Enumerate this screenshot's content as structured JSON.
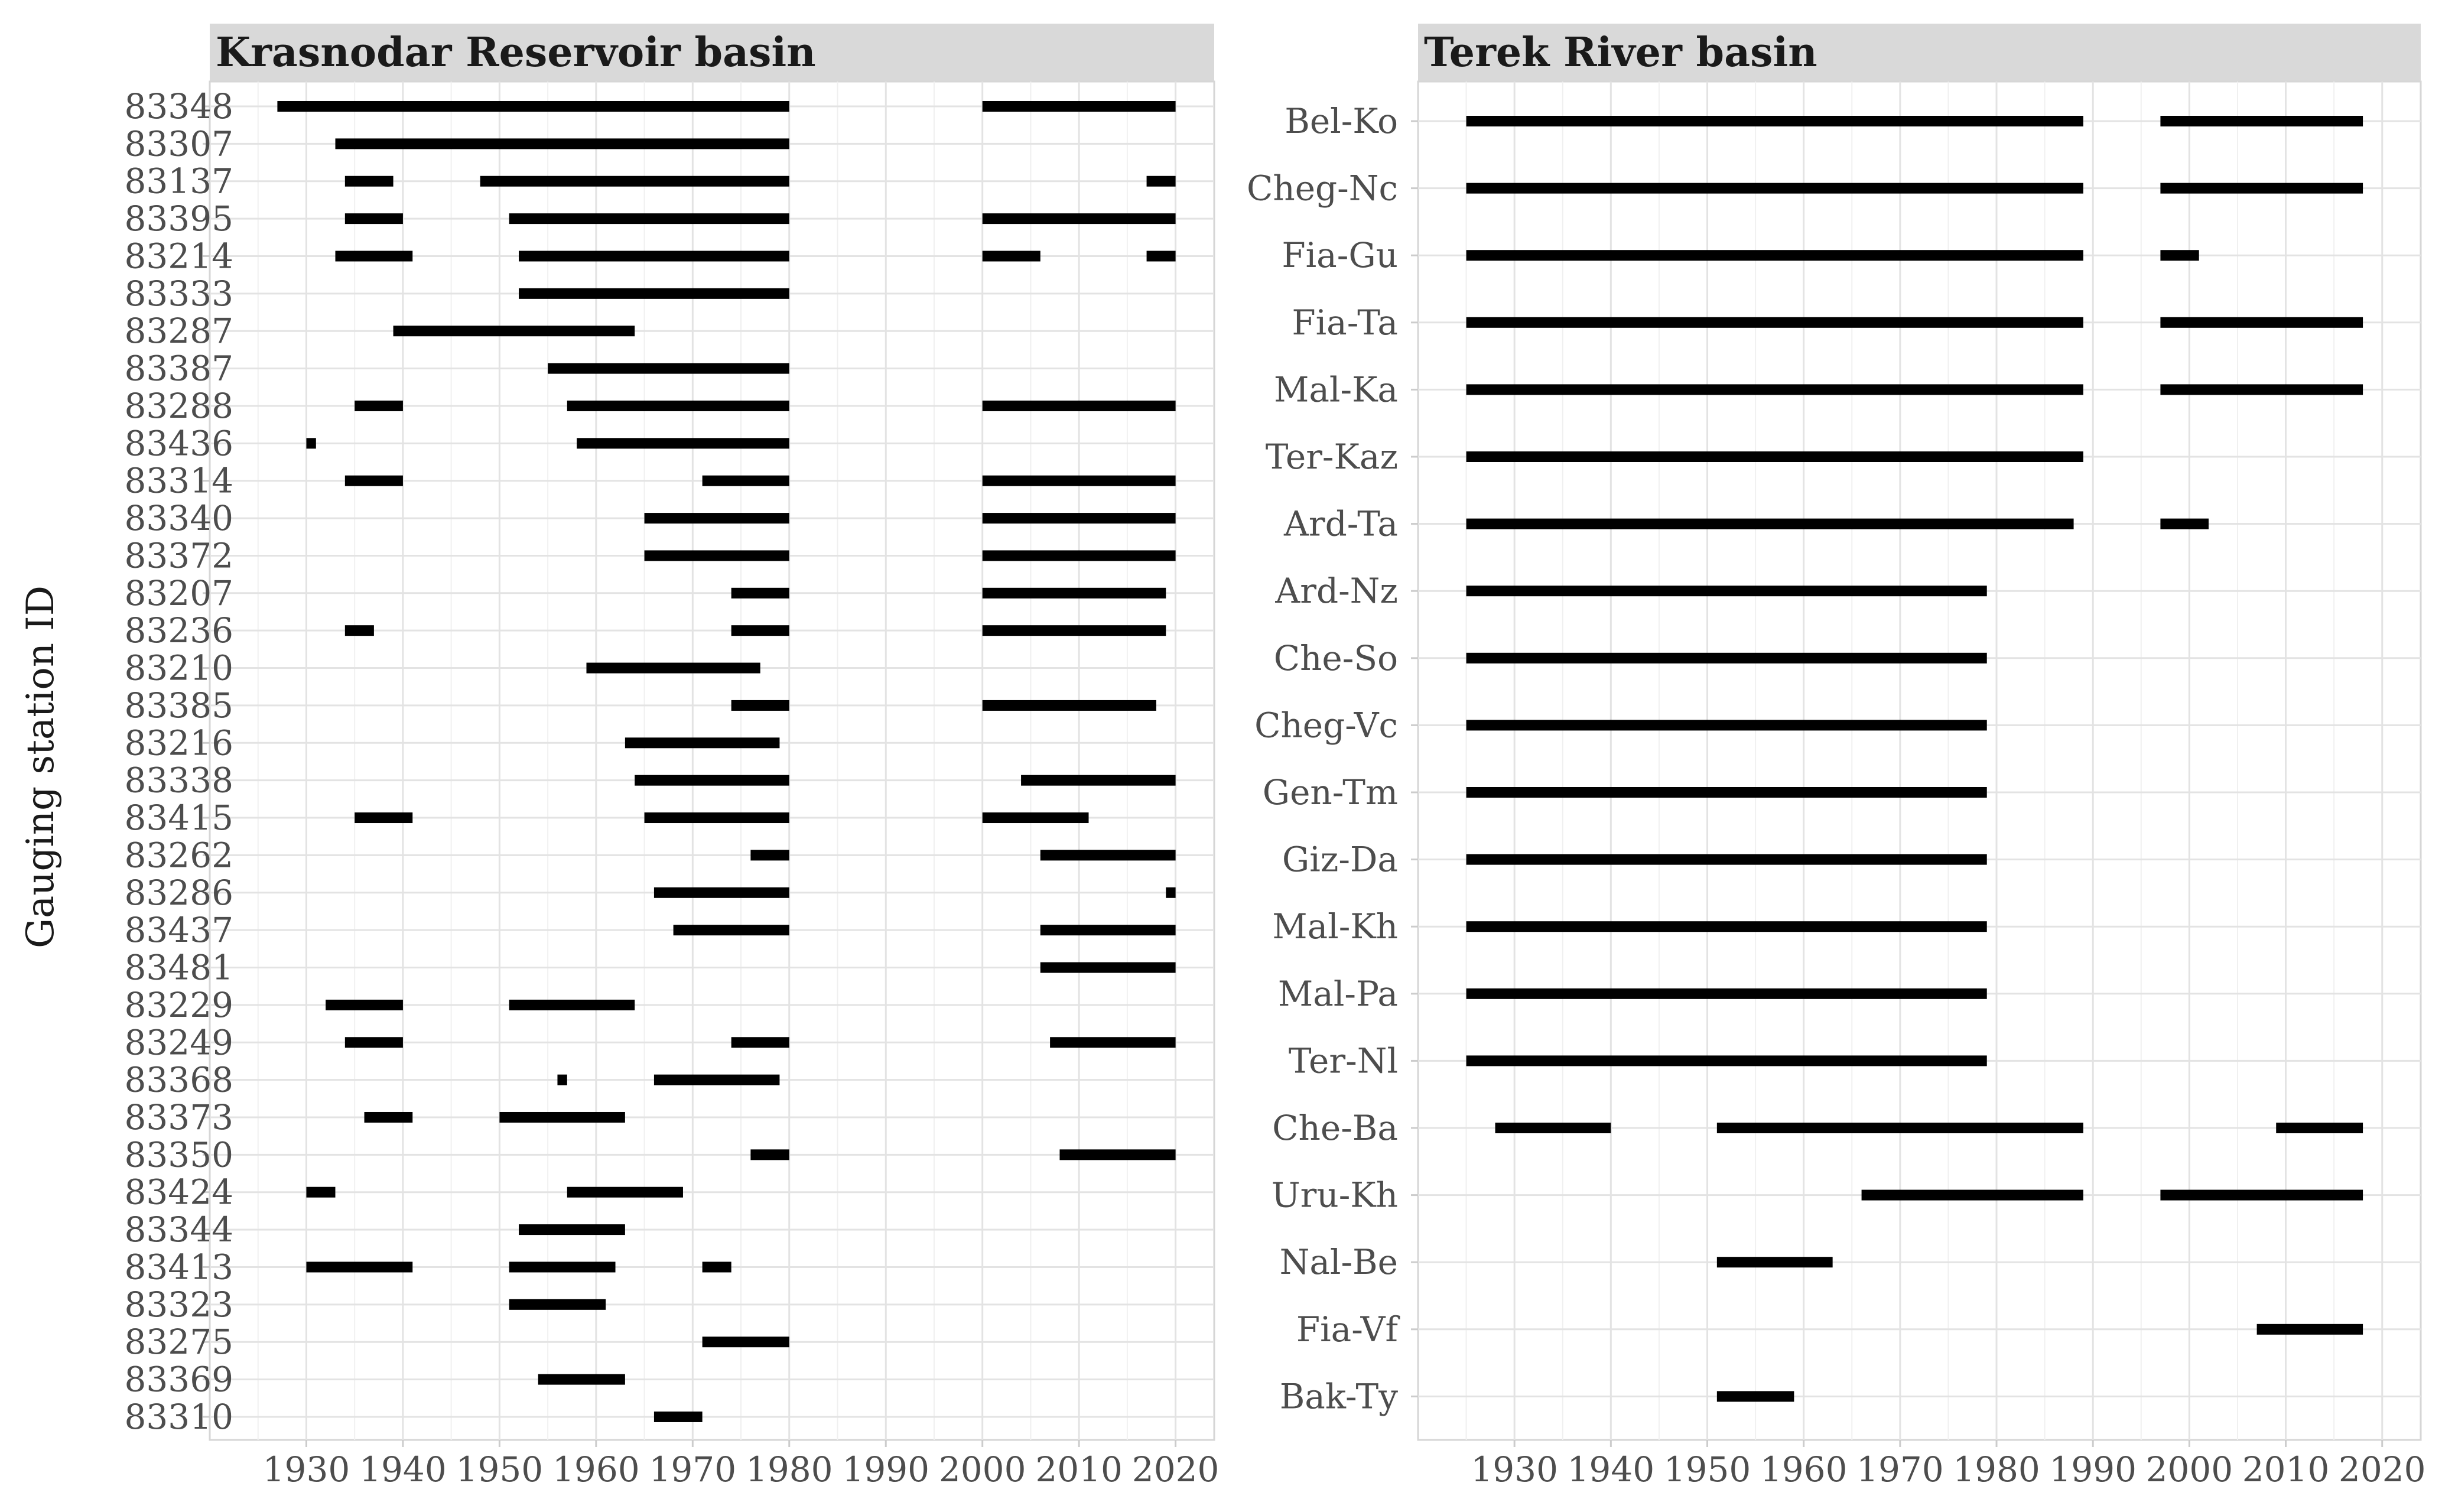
{
  "ylabel": "Gauging station ID",
  "chart_data": [
    {
      "type": "timeline",
      "title": "Krasnodar Reservoir basin",
      "ylabel": "Gauging station ID",
      "xlim": [
        1920,
        2024
      ],
      "xticks": [
        1930,
        1940,
        1950,
        1960,
        1970,
        1980,
        1990,
        2000,
        2010,
        2020
      ],
      "grid": true,
      "stations": [
        {
          "id": "83348",
          "periods": [
            [
              1927,
              1980
            ],
            [
              2000,
              2020
            ]
          ]
        },
        {
          "id": "83307",
          "periods": [
            [
              1933,
              1980
            ]
          ]
        },
        {
          "id": "83137",
          "periods": [
            [
              1934,
              1939
            ],
            [
              1948,
              1980
            ],
            [
              2017,
              2020
            ]
          ]
        },
        {
          "id": "83395",
          "periods": [
            [
              1934,
              1940
            ],
            [
              1951,
              1980
            ],
            [
              2000,
              2020
            ]
          ]
        },
        {
          "id": "83214",
          "periods": [
            [
              1933,
              1941
            ],
            [
              1952,
              1980
            ],
            [
              2000,
              2006
            ],
            [
              2017,
              2020
            ]
          ]
        },
        {
          "id": "83333",
          "periods": [
            [
              1952,
              1980
            ]
          ]
        },
        {
          "id": "83287",
          "periods": [
            [
              1939,
              1964
            ]
          ]
        },
        {
          "id": "83387",
          "periods": [
            [
              1955,
              1980
            ]
          ]
        },
        {
          "id": "83288",
          "periods": [
            [
              1935,
              1940
            ],
            [
              1957,
              1980
            ],
            [
              2000,
              2020
            ]
          ]
        },
        {
          "id": "83436",
          "periods": [
            [
              1930,
              1931
            ],
            [
              1958,
              1980
            ]
          ]
        },
        {
          "id": "83314",
          "periods": [
            [
              1934,
              1940
            ],
            [
              1971,
              1980
            ],
            [
              2000,
              2020
            ]
          ]
        },
        {
          "id": "83340",
          "periods": [
            [
              1965,
              1980
            ],
            [
              2000,
              2020
            ]
          ]
        },
        {
          "id": "83372",
          "periods": [
            [
              1965,
              1980
            ],
            [
              2000,
              2020
            ]
          ]
        },
        {
          "id": "83207",
          "periods": [
            [
              1974,
              1980
            ],
            [
              2000,
              2019
            ]
          ]
        },
        {
          "id": "83236",
          "periods": [
            [
              1934,
              1937
            ],
            [
              1974,
              1980
            ],
            [
              2000,
              2019
            ]
          ]
        },
        {
          "id": "83210",
          "periods": [
            [
              1959,
              1977
            ]
          ]
        },
        {
          "id": "83385",
          "periods": [
            [
              1974,
              1980
            ],
            [
              2000,
              2018
            ]
          ]
        },
        {
          "id": "83216",
          "periods": [
            [
              1963,
              1979
            ]
          ]
        },
        {
          "id": "83338",
          "periods": [
            [
              1964,
              1980
            ],
            [
              2004,
              2020
            ]
          ]
        },
        {
          "id": "83415",
          "periods": [
            [
              1935,
              1941
            ],
            [
              1965,
              1980
            ],
            [
              2000,
              2011
            ]
          ]
        },
        {
          "id": "83262",
          "periods": [
            [
              1976,
              1980
            ],
            [
              2006,
              2020
            ]
          ]
        },
        {
          "id": "83286",
          "periods": [
            [
              1966,
              1980
            ],
            [
              2019,
              2020
            ]
          ]
        },
        {
          "id": "83437",
          "periods": [
            [
              1968,
              1980
            ],
            [
              2006,
              2020
            ]
          ]
        },
        {
          "id": "83481",
          "periods": [
            [
              2006,
              2020
            ]
          ]
        },
        {
          "id": "83229",
          "periods": [
            [
              1932,
              1940
            ],
            [
              1951,
              1964
            ]
          ]
        },
        {
          "id": "83249",
          "periods": [
            [
              1934,
              1940
            ],
            [
              1974,
              1980
            ],
            [
              2007,
              2020
            ]
          ]
        },
        {
          "id": "83368",
          "periods": [
            [
              1956,
              1957
            ],
            [
              1966,
              1979
            ]
          ]
        },
        {
          "id": "83373",
          "periods": [
            [
              1936,
              1941
            ],
            [
              1950,
              1963
            ]
          ]
        },
        {
          "id": "83350",
          "periods": [
            [
              1976,
              1980
            ],
            [
              2008,
              2020
            ]
          ]
        },
        {
          "id": "83424",
          "periods": [
            [
              1930,
              1933
            ],
            [
              1957,
              1969
            ]
          ]
        },
        {
          "id": "83344",
          "periods": [
            [
              1952,
              1963
            ]
          ]
        },
        {
          "id": "83413",
          "periods": [
            [
              1930,
              1941
            ],
            [
              1951,
              1962
            ],
            [
              1971,
              1974
            ]
          ]
        },
        {
          "id": "83323",
          "periods": [
            [
              1951,
              1961
            ]
          ]
        },
        {
          "id": "83275",
          "periods": [
            [
              1971,
              1980
            ]
          ]
        },
        {
          "id": "83369",
          "periods": [
            [
              1954,
              1963
            ]
          ]
        },
        {
          "id": "83310",
          "periods": [
            [
              1966,
              1971
            ]
          ]
        }
      ]
    },
    {
      "type": "timeline",
      "title": "Terek River basin",
      "xlim": [
        1920,
        2024
      ],
      "xticks": [
        1930,
        1940,
        1950,
        1960,
        1970,
        1980,
        1990,
        2000,
        2010,
        2020
      ],
      "grid": true,
      "stations": [
        {
          "id": "Bel-Ko",
          "periods": [
            [
              1925,
              1989
            ],
            [
              1997,
              2018
            ]
          ]
        },
        {
          "id": "Cheg-Nc",
          "periods": [
            [
              1925,
              1989
            ],
            [
              1997,
              2018
            ]
          ]
        },
        {
          "id": "Fia-Gu",
          "periods": [
            [
              1925,
              1989
            ],
            [
              1997,
              2001
            ]
          ]
        },
        {
          "id": "Fia-Ta",
          "periods": [
            [
              1925,
              1989
            ],
            [
              1997,
              2018
            ]
          ]
        },
        {
          "id": "Mal-Ka",
          "periods": [
            [
              1925,
              1989
            ],
            [
              1997,
              2018
            ]
          ]
        },
        {
          "id": "Ter-Kaz",
          "periods": [
            [
              1925,
              1989
            ]
          ]
        },
        {
          "id": "Ard-Ta",
          "periods": [
            [
              1925,
              1988
            ],
            [
              1997,
              2002
            ]
          ]
        },
        {
          "id": "Ard-Nz",
          "periods": [
            [
              1925,
              1979
            ]
          ]
        },
        {
          "id": "Che-So",
          "periods": [
            [
              1925,
              1979
            ]
          ]
        },
        {
          "id": "Cheg-Vc",
          "periods": [
            [
              1925,
              1979
            ]
          ]
        },
        {
          "id": "Gen-Tm",
          "periods": [
            [
              1925,
              1979
            ]
          ]
        },
        {
          "id": "Giz-Da",
          "periods": [
            [
              1925,
              1979
            ]
          ]
        },
        {
          "id": "Mal-Kh",
          "periods": [
            [
              1925,
              1979
            ]
          ]
        },
        {
          "id": "Mal-Pa",
          "periods": [
            [
              1925,
              1979
            ]
          ]
        },
        {
          "id": "Ter-Nl",
          "periods": [
            [
              1925,
              1979
            ]
          ]
        },
        {
          "id": "Che-Ba",
          "periods": [
            [
              1928,
              1940
            ],
            [
              1951,
              1989
            ],
            [
              2009,
              2018
            ]
          ]
        },
        {
          "id": "Uru-Kh",
          "periods": [
            [
              1966,
              1989
            ],
            [
              1997,
              2018
            ]
          ]
        },
        {
          "id": "Nal-Be",
          "periods": [
            [
              1951,
              1963
            ]
          ]
        },
        {
          "id": "Fia-Vf",
          "periods": [
            [
              2007,
              2018
            ]
          ]
        },
        {
          "id": "Bak-Ty",
          "periods": [
            [
              1951,
              1959
            ]
          ]
        }
      ]
    }
  ]
}
